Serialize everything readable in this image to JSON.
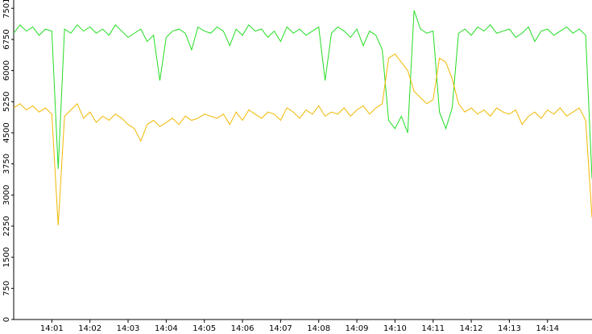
{
  "chart_data": {
    "type": "line",
    "categories": [
      null,
      null,
      null,
      null,
      null,
      null,
      "14:01",
      null,
      null,
      null,
      null,
      null,
      "14:02",
      null,
      null,
      null,
      null,
      null,
      "14:03",
      null,
      null,
      null,
      null,
      null,
      "14:04",
      null,
      null,
      null,
      null,
      null,
      "14:05",
      null,
      null,
      null,
      null,
      null,
      "14:06",
      null,
      null,
      null,
      null,
      null,
      "14:07",
      null,
      null,
      null,
      null,
      null,
      "14:08",
      null,
      null,
      null,
      null,
      null,
      "14:09",
      null,
      null,
      null,
      null,
      null,
      "14:10",
      null,
      null,
      null,
      null,
      null,
      "14:11",
      null,
      null,
      null,
      null,
      null,
      "14:12",
      null,
      null,
      null,
      null,
      null,
      "14:13",
      null,
      null,
      null,
      null,
      null,
      "14:14",
      null,
      null,
      null,
      null,
      null,
      null,
      null
    ],
    "series": [
      {
        "color": "#22dd22",
        "values": [
          6900,
          7100,
          6950,
          7050,
          6850,
          7000,
          6950,
          3630,
          7000,
          6900,
          7100,
          6950,
          7050,
          6900,
          7000,
          6850,
          7100,
          6950,
          6800,
          6900,
          7000,
          6700,
          6850,
          5760,
          6800,
          6950,
          7000,
          6900,
          6500,
          7050,
          6950,
          6900,
          7050,
          6950,
          6600,
          7000,
          6850,
          7100,
          6950,
          7000,
          6800,
          6950,
          6700,
          7050,
          6900,
          7000,
          6850,
          6950,
          7050,
          5760,
          6900,
          7050,
          6950,
          6800,
          7000,
          6600,
          6950,
          6850,
          6500,
          4800,
          4600,
          4900,
          4500,
          7450,
          7000,
          6900,
          6950,
          5000,
          4600,
          5100,
          6900,
          7000,
          6850,
          7050,
          6950,
          7100,
          6900,
          6950,
          7000,
          6800,
          6900,
          7050,
          6700,
          6950,
          7000,
          6850,
          6950,
          7050,
          6900,
          7000,
          6850,
          3400
        ]
      },
      {
        "color": "#f0b800",
        "values": [
          5100,
          5200,
          5050,
          5150,
          5000,
          5100,
          4950,
          2270,
          4900,
          5050,
          5200,
          4850,
          5000,
          4750,
          4900,
          4800,
          4950,
          4850,
          4700,
          4600,
          4300,
          4700,
          4800,
          4650,
          4750,
          4850,
          4700,
          4900,
          4800,
          4850,
          4950,
          4900,
          4850,
          4950,
          4700,
          5000,
          4800,
          5050,
          4950,
          4850,
          5000,
          4950,
          4800,
          5100,
          5000,
          4850,
          5050,
          4950,
          5150,
          4900,
          5000,
          4950,
          5100,
          4900,
          5050,
          5150,
          4950,
          5100,
          5200,
          6300,
          6400,
          6200,
          6000,
          5500,
          5350,
          5200,
          5300,
          6300,
          6200,
          5800,
          5200,
          5000,
          5100,
          4950,
          5050,
          4900,
          5100,
          5000,
          4950,
          5050,
          4700,
          4900,
          5000,
          4850,
          5050,
          4950,
          5100,
          4900,
          5000,
          5100,
          4800,
          2460
        ]
      }
    ],
    "ylim": [
      0,
      7700
    ],
    "yticks": [
      0,
      750,
      1500,
      2250,
      3000,
      3750,
      4500,
      5250,
      6000,
      6750,
      7501
    ]
  }
}
